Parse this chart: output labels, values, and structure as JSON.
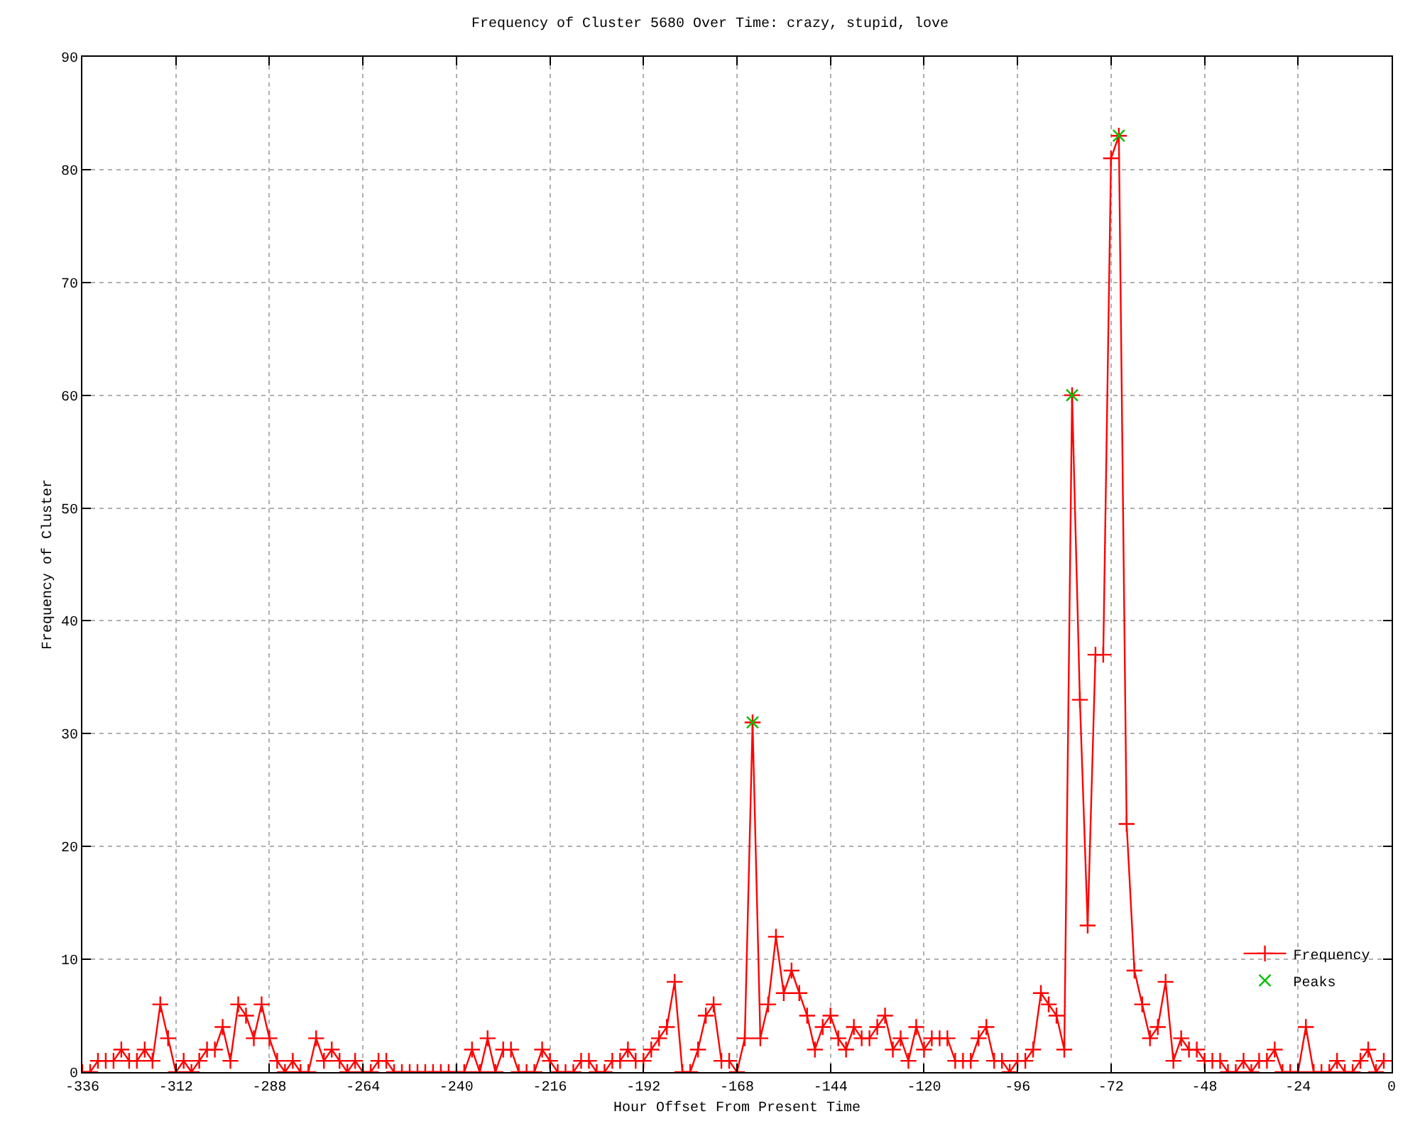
{
  "chart_data": {
    "type": "line",
    "title": "Frequency of Cluster 5680 Over Time: crazy, stupid, love",
    "xlabel": "Hour Offset From Present Time",
    "ylabel": "Frequency of Cluster",
    "x": [
      -336,
      -334,
      -332,
      -330,
      -328,
      -326,
      -324,
      -322,
      -320,
      -318,
      -316,
      -314,
      -312,
      -310,
      -308,
      -306,
      -304,
      -302,
      -300,
      -298,
      -296,
      -294,
      -292,
      -290,
      -288,
      -286,
      -284,
      -282,
      -280,
      -278,
      -276,
      -274,
      -272,
      -270,
      -268,
      -266,
      -264,
      -262,
      -260,
      -258,
      -256,
      -254,
      -252,
      -250,
      -248,
      -246,
      -244,
      -242,
      -240,
      -238,
      -236,
      -234,
      -232,
      -230,
      -228,
      -226,
      -224,
      -222,
      -220,
      -218,
      -216,
      -214,
      -212,
      -210,
      -208,
      -206,
      -204,
      -202,
      -200,
      -198,
      -196,
      -194,
      -192,
      -190,
      -188,
      -186,
      -184,
      -182,
      -180,
      -178,
      -176,
      -174,
      -172,
      -170,
      -168,
      -166,
      -164,
      -162,
      -160,
      -158,
      -156,
      -154,
      -152,
      -150,
      -148,
      -146,
      -144,
      -142,
      -140,
      -138,
      -136,
      -134,
      -132,
      -130,
      -128,
      -126,
      -124,
      -122,
      -120,
      -118,
      -116,
      -114,
      -112,
      -110,
      -108,
      -106,
      -104,
      -102,
      -100,
      -98,
      -96,
      -94,
      -92,
      -90,
      -88,
      -86,
      -84,
      -82,
      -80,
      -78,
      -76,
      -74,
      -72,
      -70,
      -68,
      -66,
      -64,
      -62,
      -60,
      -58,
      -56,
      -54,
      -52,
      -50,
      -48,
      -46,
      -44,
      -42,
      -40,
      -38,
      -36,
      -34,
      -32,
      -30,
      -28,
      -26,
      -24,
      -22,
      -20,
      -18,
      -16,
      -14,
      -12,
      -10,
      -8,
      -6,
      -4,
      -2
    ],
    "series": [
      {
        "name": "Frequency",
        "color": "#ff0000",
        "marker": "cross",
        "values": [
          0,
          0,
          1,
          1,
          1,
          2,
          1,
          1,
          2,
          1,
          6,
          3,
          0,
          1,
          0,
          1,
          2,
          2,
          4,
          1,
          6,
          5,
          3,
          6,
          3,
          1,
          0,
          1,
          0,
          0,
          3,
          1,
          2,
          1,
          0,
          1,
          0,
          0,
          1,
          1,
          0,
          0,
          0,
          0,
          0,
          0,
          0,
          0,
          0,
          0,
          2,
          0,
          3,
          0,
          2,
          2,
          0,
          0,
          0,
          2,
          1,
          0,
          0,
          0,
          1,
          1,
          0,
          0,
          1,
          1,
          2,
          1,
          1,
          2,
          3,
          4,
          8,
          0,
          0,
          2,
          5,
          6,
          1,
          1,
          0,
          3,
          31,
          3,
          6,
          12,
          7,
          9,
          7,
          5,
          2,
          4,
          5,
          3,
          2,
          4,
          3,
          3,
          4,
          5,
          2,
          3,
          1,
          4,
          2,
          3,
          3,
          3,
          1,
          1,
          1,
          3,
          4,
          1,
          1,
          0,
          1,
          1,
          2,
          7,
          6,
          5,
          2,
          60,
          33,
          13,
          37,
          37,
          81,
          83,
          22,
          9,
          6,
          3,
          4,
          8,
          1,
          3,
          2,
          2,
          1,
          1,
          1,
          0,
          0,
          1,
          0,
          1,
          1,
          2,
          0,
          0,
          0,
          4,
          0,
          0,
          0,
          1,
          0,
          0,
          1,
          2,
          0,
          1
        ]
      },
      {
        "name": "Peaks",
        "type": "scatter",
        "color": "#00c000",
        "marker": "x",
        "x": [
          -164,
          -82,
          -70
        ],
        "values": [
          31,
          60,
          83
        ]
      }
    ],
    "xlim": [
      -336,
      0
    ],
    "xticks": [
      -336,
      -312,
      -288,
      -264,
      -240,
      -216,
      -192,
      -168,
      -144,
      -120,
      -96,
      -72,
      -48,
      -24,
      0
    ],
    "ylim": [
      0,
      90
    ],
    "yticks": [
      0,
      10,
      20,
      30,
      40,
      50,
      60,
      70,
      80,
      90
    ],
    "grid": true,
    "legend": "bottom right"
  }
}
